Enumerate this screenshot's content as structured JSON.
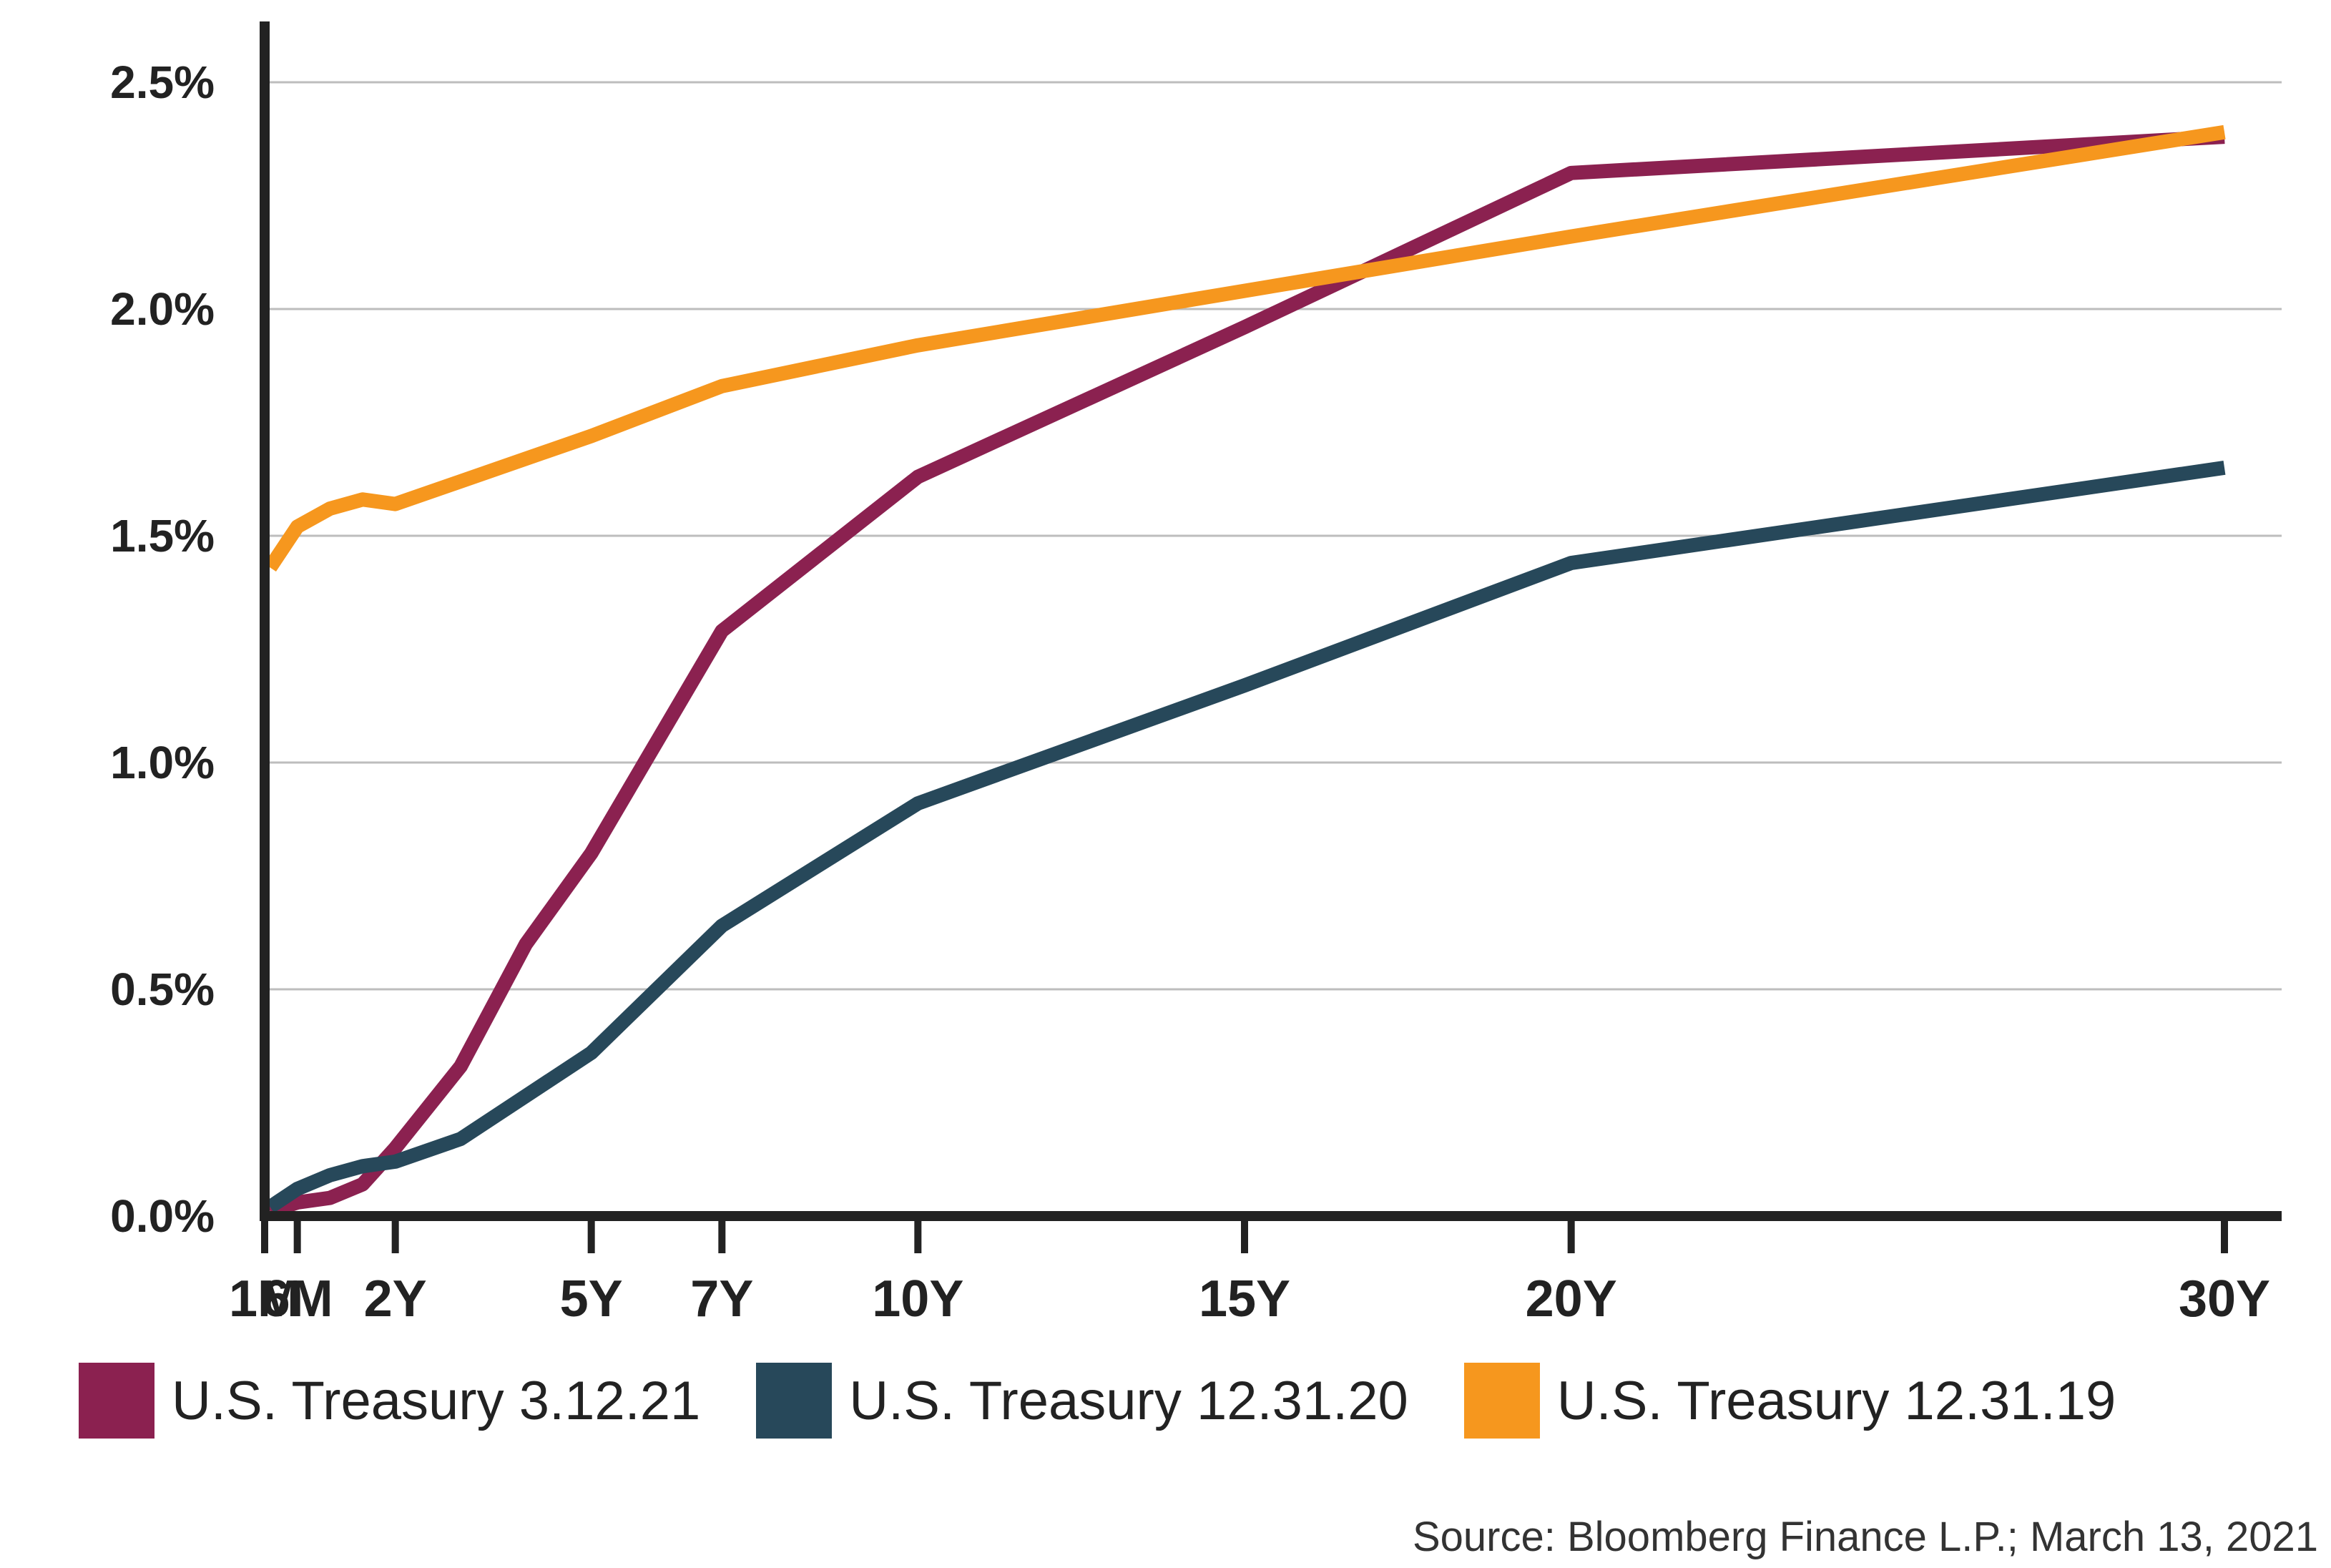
{
  "chart_data": {
    "type": "line",
    "title": "",
    "xlabel": "",
    "ylabel": "",
    "x_ticks": [
      {
        "label": "1M",
        "t": 0.0833
      },
      {
        "label": "6M",
        "t": 0.5
      },
      {
        "label": "2Y",
        "t": 2
      },
      {
        "label": "5Y",
        "t": 5
      },
      {
        "label": "7Y",
        "t": 7
      },
      {
        "label": "10Y",
        "t": 10
      },
      {
        "label": "15Y",
        "t": 15
      },
      {
        "label": "20Y",
        "t": 20
      },
      {
        "label": "30Y",
        "t": 30
      }
    ],
    "y_ticks": [
      "0.0%",
      "0.5%",
      "1.0%",
      "1.5%",
      "2.0%",
      "2.5%"
    ],
    "ylim": [
      0,
      2.6
    ],
    "xlim": [
      0,
      30.9
    ],
    "grid": true,
    "legend_position": "bottom",
    "series": [
      {
        "name": "U.S. Treasury 3.12.21",
        "color": "#8b2150",
        "points": [
          [
            0.0833,
            0.01
          ],
          [
            0.5,
            0.03
          ],
          [
            1,
            0.04
          ],
          [
            1.5,
            0.07
          ],
          [
            2,
            0.15
          ],
          [
            3,
            0.33
          ],
          [
            4,
            0.6
          ],
          [
            5,
            0.8
          ],
          [
            7,
            1.29
          ],
          [
            10,
            1.63
          ],
          [
            15,
            1.96
          ],
          [
            20,
            2.3
          ],
          [
            30,
            2.38
          ]
        ]
      },
      {
        "name": "U.S. Treasury 12.31.20",
        "color": "#27485a",
        "points": [
          [
            0.0833,
            0.02
          ],
          [
            0.5,
            0.06
          ],
          [
            1,
            0.09
          ],
          [
            1.5,
            0.11
          ],
          [
            2,
            0.12
          ],
          [
            3,
            0.17
          ],
          [
            5,
            0.36
          ],
          [
            7,
            0.64
          ],
          [
            10,
            0.91
          ],
          [
            15,
            1.17
          ],
          [
            20,
            1.44
          ],
          [
            30,
            1.65
          ]
        ]
      },
      {
        "name": "U.S. Treasury 12.31.19",
        "color": "#f6971e",
        "points": [
          [
            0.0833,
            1.43
          ],
          [
            0.5,
            1.52
          ],
          [
            1,
            1.56
          ],
          [
            1.5,
            1.58
          ],
          [
            2,
            1.57
          ],
          [
            3,
            1.62
          ],
          [
            4,
            1.67
          ],
          [
            5,
            1.72
          ],
          [
            7,
            1.83
          ],
          [
            10,
            1.92
          ],
          [
            15,
            2.04
          ],
          [
            20,
            2.16
          ],
          [
            30,
            2.39
          ]
        ]
      }
    ]
  },
  "source": "Source: Bloomberg Finance L.P.; March 13, 2021"
}
